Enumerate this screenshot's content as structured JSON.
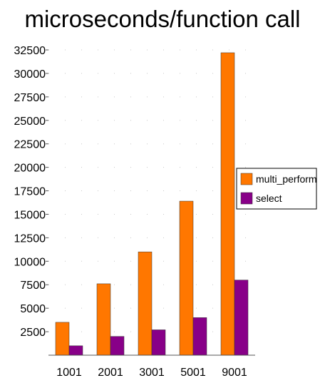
{
  "chart_data": {
    "type": "bar",
    "title": "microseconds/function call",
    "xlabel": "",
    "ylabel": "",
    "categories": [
      "1001",
      "2001",
      "3001",
      "5001",
      "9001"
    ],
    "series": [
      {
        "name": "multi_perform",
        "color": "#ff7700",
        "values": [
          3500,
          7600,
          11000,
          16400,
          32200
        ]
      },
      {
        "name": "select",
        "color": "#880088",
        "values": [
          1000,
          2000,
          2700,
          4000,
          8000
        ]
      }
    ],
    "ylim": [
      0,
      32500
    ],
    "yticks": [
      "2500",
      "5000",
      "7500",
      "10000",
      "12500",
      "15000",
      "17500",
      "20000",
      "22500",
      "25000",
      "27500",
      "30000",
      "32500"
    ],
    "grid": "dotted",
    "legend_position": "right"
  }
}
